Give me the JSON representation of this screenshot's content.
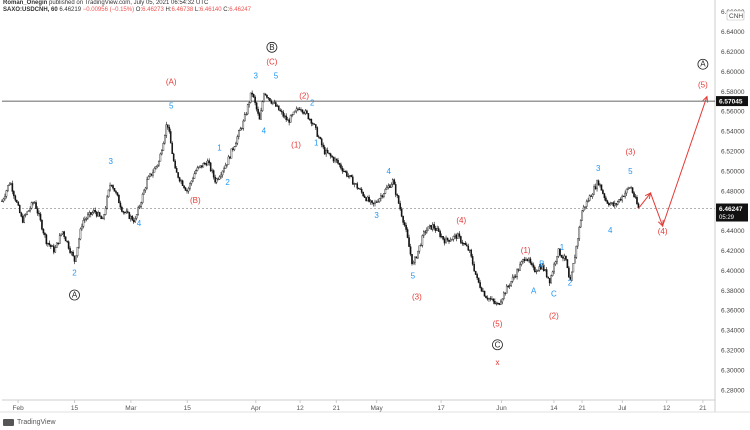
{
  "header": {
    "user": "Roman_Onegin",
    "published_line": "published on TradingView.com, July 05, 2021 06:54:32 UTC",
    "symbol": "SAXO:USDCNH, 60",
    "price": "6.46219",
    "change": "−0.00956 (−0.15%)",
    "o_label": "O:",
    "o": "6.46273",
    "h_label": "H:",
    "h": "6.46738",
    "l_label": "L:",
    "l": "6.46140",
    "c_label": "C:",
    "c": "6.46247"
  },
  "footer": {
    "brand": "TradingView"
  },
  "colors": {
    "blue": "#2196f3",
    "red": "#e53935",
    "candles": "#111111",
    "axis": "#cccccc"
  },
  "chart_data": {
    "type": "candlestick",
    "y_axis": {
      "min": 6.27,
      "max": 6.66,
      "ticks": [
        "6.66000",
        "6.64000",
        "6.62000",
        "6.60000",
        "6.58000",
        "6.56000",
        "6.54000",
        "6.52000",
        "6.50000",
        "6.48000",
        "6.46000",
        "6.44000",
        "6.42000",
        "6.40000",
        "6.38000",
        "6.36000",
        "6.34000",
        "6.32000",
        "6.30000",
        "6.28000"
      ],
      "corner_label": "CNH"
    },
    "x_axis": {
      "start": "2021-01-28",
      "end": "2021-07-24",
      "ticks": [
        {
          "label": "Feb",
          "date": "2021-02-01"
        },
        {
          "label": "15",
          "date": "2021-02-15"
        },
        {
          "label": "Mar",
          "date": "2021-03-01"
        },
        {
          "label": "15",
          "date": "2021-03-15"
        },
        {
          "label": "Apr",
          "date": "2021-04-01"
        },
        {
          "label": "12",
          "date": "2021-04-12"
        },
        {
          "label": "21",
          "date": "2021-04-21"
        },
        {
          "label": "May",
          "date": "2021-05-01"
        },
        {
          "label": "17",
          "date": "2021-05-17"
        },
        {
          "label": "Jun",
          "date": "2021-06-01"
        },
        {
          "label": "14",
          "date": "2021-06-14"
        },
        {
          "label": "21",
          "date": "2021-06-21"
        },
        {
          "label": "Jul",
          "date": "2021-07-01"
        },
        {
          "label": "12",
          "date": "2021-07-12"
        },
        {
          "label": "21",
          "date": "2021-07-21"
        }
      ]
    },
    "horizontal_line": {
      "value": 6.57045,
      "label": "6.57045"
    },
    "last_price": {
      "value": 6.46247,
      "label": "6.46247",
      "countdown": "05:29"
    },
    "price_path": [
      {
        "date": "2021-01-28",
        "price": 6.47
      },
      {
        "date": "2021-01-30",
        "price": 6.49
      },
      {
        "date": "2021-02-02",
        "price": 6.45
      },
      {
        "date": "2021-02-05",
        "price": 6.47
      },
      {
        "date": "2021-02-08",
        "price": 6.43
      },
      {
        "date": "2021-02-10",
        "price": 6.42
      },
      {
        "date": "2021-02-12",
        "price": 6.44
      },
      {
        "date": "2021-02-15",
        "price": 6.41
      },
      {
        "date": "2021-02-17",
        "price": 6.45
      },
      {
        "date": "2021-02-20",
        "price": 6.46
      },
      {
        "date": "2021-02-22",
        "price": 6.45
      },
      {
        "date": "2021-02-24",
        "price": 6.49
      },
      {
        "date": "2021-02-27",
        "price": 6.46
      },
      {
        "date": "2021-03-02",
        "price": 6.45
      },
      {
        "date": "2021-03-05",
        "price": 6.49
      },
      {
        "date": "2021-03-08",
        "price": 6.51
      },
      {
        "date": "2021-03-10",
        "price": 6.55
      },
      {
        "date": "2021-03-12",
        "price": 6.5
      },
      {
        "date": "2021-03-15",
        "price": 6.48
      },
      {
        "date": "2021-03-17",
        "price": 6.5
      },
      {
        "date": "2021-03-20",
        "price": 6.51
      },
      {
        "date": "2021-03-22",
        "price": 6.49
      },
      {
        "date": "2021-03-25",
        "price": 6.51
      },
      {
        "date": "2021-03-27",
        "price": 6.53
      },
      {
        "date": "2021-03-29",
        "price": 6.55
      },
      {
        "date": "2021-03-31",
        "price": 6.58
      },
      {
        "date": "2021-04-02",
        "price": 6.55
      },
      {
        "date": "2021-04-03",
        "price": 6.58
      },
      {
        "date": "2021-04-05",
        "price": 6.57
      },
      {
        "date": "2021-04-07",
        "price": 6.56
      },
      {
        "date": "2021-04-09",
        "price": 6.55
      },
      {
        "date": "2021-04-12",
        "price": 6.565
      },
      {
        "date": "2021-04-15",
        "price": 6.55
      },
      {
        "date": "2021-04-18",
        "price": 6.52
      },
      {
        "date": "2021-04-21",
        "price": 6.51
      },
      {
        "date": "2021-04-24",
        "price": 6.495
      },
      {
        "date": "2021-04-27",
        "price": 6.48
      },
      {
        "date": "2021-04-30",
        "price": 6.465
      },
      {
        "date": "2021-05-03",
        "price": 6.48
      },
      {
        "date": "2021-05-05",
        "price": 6.49
      },
      {
        "date": "2021-05-08",
        "price": 6.445
      },
      {
        "date": "2021-05-10",
        "price": 6.405
      },
      {
        "date": "2021-05-13",
        "price": 6.44
      },
      {
        "date": "2021-05-15",
        "price": 6.445
      },
      {
        "date": "2021-05-18",
        "price": 6.43
      },
      {
        "date": "2021-05-21",
        "price": 6.435
      },
      {
        "date": "2021-05-24",
        "price": 6.42
      },
      {
        "date": "2021-05-26",
        "price": 6.39
      },
      {
        "date": "2021-05-28",
        "price": 6.375
      },
      {
        "date": "2021-05-31",
        "price": 6.365
      },
      {
        "date": "2021-06-02",
        "price": 6.38
      },
      {
        "date": "2021-06-05",
        "price": 6.4
      },
      {
        "date": "2021-06-07",
        "price": 6.415
      },
      {
        "date": "2021-06-09",
        "price": 6.4
      },
      {
        "date": "2021-06-11",
        "price": 6.405
      },
      {
        "date": "2021-06-13",
        "price": 6.39
      },
      {
        "date": "2021-06-15",
        "price": 6.42
      },
      {
        "date": "2021-06-17",
        "price": 6.41
      },
      {
        "date": "2021-06-18",
        "price": 6.385
      },
      {
        "date": "2021-06-19",
        "price": 6.41
      },
      {
        "date": "2021-06-21",
        "price": 6.46
      },
      {
        "date": "2021-06-23",
        "price": 6.475
      },
      {
        "date": "2021-06-25",
        "price": 6.49
      },
      {
        "date": "2021-06-27",
        "price": 6.47
      },
      {
        "date": "2021-06-29",
        "price": 6.465
      },
      {
        "date": "2021-07-01",
        "price": 6.475
      },
      {
        "date": "2021-07-03",
        "price": 6.485
      },
      {
        "date": "2021-07-05",
        "price": 6.4625
      }
    ],
    "projection": [
      {
        "date": "2021-07-05",
        "price": 6.4625
      },
      {
        "date": "2021-07-08",
        "price": 6.478
      },
      {
        "date": "2021-07-11",
        "price": 6.445
      },
      {
        "date": "2021-07-22",
        "price": 6.575
      }
    ],
    "annotations": [
      {
        "text": "2",
        "date": "2021-02-15",
        "price": 6.395,
        "color": "blue"
      },
      {
        "text": "A",
        "date": "2021-02-15",
        "price": 6.373,
        "color": "dark",
        "circle": true
      },
      {
        "text": "3",
        "date": "2021-02-24",
        "price": 6.507,
        "color": "blue"
      },
      {
        "text": "4",
        "date": "2021-03-03",
        "price": 6.445,
        "color": "blue"
      },
      {
        "text": "5",
        "date": "2021-03-11",
        "price": 6.563,
        "color": "blue"
      },
      {
        "text": "(A)",
        "date": "2021-03-11",
        "price": 6.587,
        "color": "red"
      },
      {
        "text": "(B)",
        "date": "2021-03-17",
        "price": 6.468,
        "color": "red"
      },
      {
        "text": "1",
        "date": "2021-03-23",
        "price": 6.521,
        "color": "blue"
      },
      {
        "text": "2",
        "date": "2021-03-25",
        "price": 6.486,
        "color": "blue"
      },
      {
        "text": "3",
        "date": "2021-04-01",
        "price": 6.593,
        "color": "blue"
      },
      {
        "text": "4",
        "date": "2021-04-03",
        "price": 6.538,
        "color": "blue"
      },
      {
        "text": "5",
        "date": "2021-04-06",
        "price": 6.593,
        "color": "blue"
      },
      {
        "text": "(C)",
        "date": "2021-04-05",
        "price": 6.607,
        "color": "red"
      },
      {
        "text": "B",
        "date": "2021-04-05",
        "price": 6.622,
        "color": "dark",
        "circle": true
      },
      {
        "text": "(2)",
        "date": "2021-04-13",
        "price": 6.573,
        "color": "red"
      },
      {
        "text": "2",
        "date": "2021-04-15",
        "price": 6.566,
        "color": "blue"
      },
      {
        "text": "(1)",
        "date": "2021-04-11",
        "price": 6.524,
        "color": "red"
      },
      {
        "text": "1",
        "date": "2021-04-16",
        "price": 6.526,
        "color": "blue"
      },
      {
        "text": "3",
        "date": "2021-05-01",
        "price": 6.453,
        "color": "blue"
      },
      {
        "text": "4",
        "date": "2021-05-04",
        "price": 6.497,
        "color": "blue"
      },
      {
        "text": "5",
        "date": "2021-05-10",
        "price": 6.392,
        "color": "blue"
      },
      {
        "text": "(3)",
        "date": "2021-05-11",
        "price": 6.371,
        "color": "red"
      },
      {
        "text": "(4)",
        "date": "2021-05-22",
        "price": 6.448,
        "color": "red"
      },
      {
        "text": "(5)",
        "date": "2021-05-31",
        "price": 6.344,
        "color": "red"
      },
      {
        "text": "C",
        "date": "2021-05-31",
        "price": 6.323,
        "color": "dark",
        "circle": true
      },
      {
        "text": "x",
        "date": "2021-05-31",
        "price": 6.305,
        "color": "red"
      },
      {
        "text": "(1)",
        "date": "2021-06-07",
        "price": 6.418,
        "color": "red"
      },
      {
        "text": "A",
        "date": "2021-06-09",
        "price": 6.377,
        "color": "blue"
      },
      {
        "text": "B",
        "date": "2021-06-11",
        "price": 6.404,
        "color": "blue"
      },
      {
        "text": "C",
        "date": "2021-06-14",
        "price": 6.374,
        "color": "blue"
      },
      {
        "text": "(2)",
        "date": "2021-06-14",
        "price": 6.352,
        "color": "red"
      },
      {
        "text": "1",
        "date": "2021-06-16",
        "price": 6.421,
        "color": "blue"
      },
      {
        "text": "2",
        "date": "2021-06-18",
        "price": 6.385,
        "color": "blue"
      },
      {
        "text": "3",
        "date": "2021-06-25",
        "price": 6.5,
        "color": "blue"
      },
      {
        "text": "4",
        "date": "2021-06-28",
        "price": 6.438,
        "color": "blue"
      },
      {
        "text": "5",
        "date": "2021-07-03",
        "price": 6.497,
        "color": "blue"
      },
      {
        "text": "(3)",
        "date": "2021-07-03",
        "price": 6.517,
        "color": "red"
      },
      {
        "text": "(4)",
        "date": "2021-07-11",
        "price": 6.437,
        "color": "red"
      },
      {
        "text": "(5)",
        "date": "2021-07-21",
        "price": 6.584,
        "color": "red"
      },
      {
        "text": "A",
        "date": "2021-07-21",
        "price": 6.605,
        "color": "dark",
        "circle": true
      }
    ]
  }
}
